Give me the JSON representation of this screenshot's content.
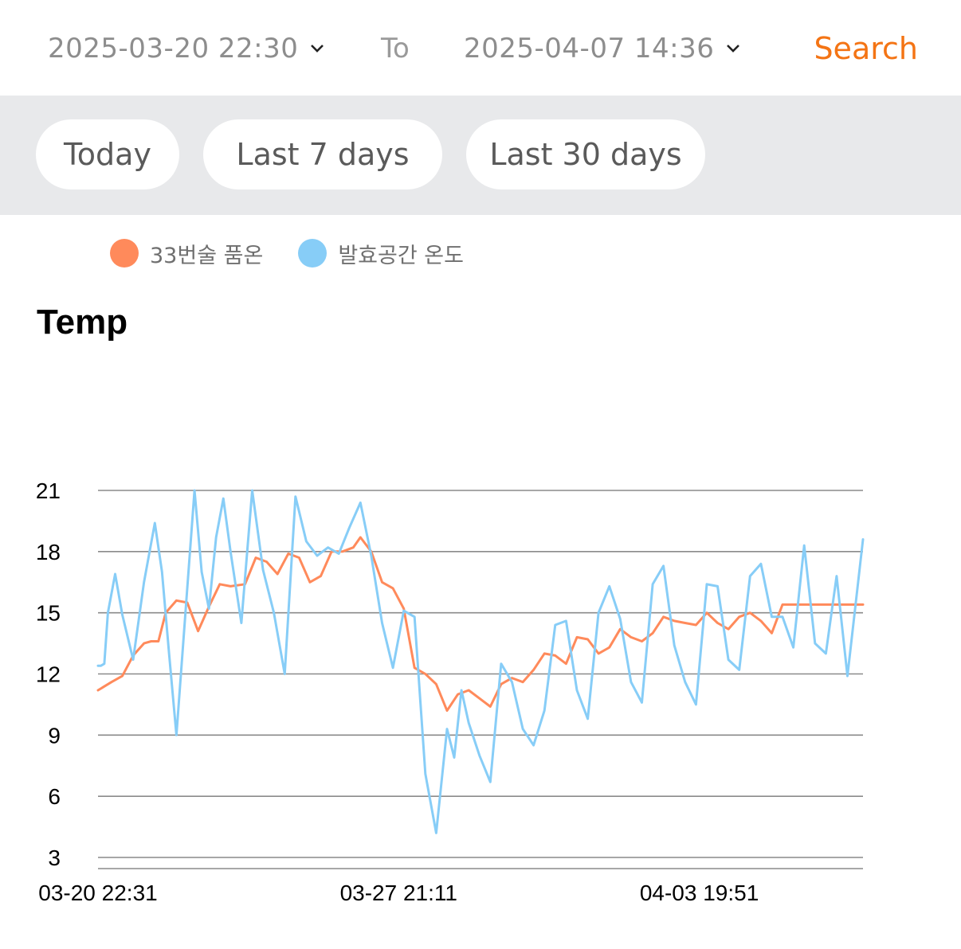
{
  "filter": {
    "from_date": "2025-03-20 22:30",
    "to_label": "To",
    "to_date": "2025-04-07 14:36",
    "search_label": "Search"
  },
  "quick_ranges": [
    "Today",
    "Last 7 days",
    "Last 30 days"
  ],
  "colors": {
    "accent": "#f47414",
    "series_a": "#ff8a5b",
    "series_b": "#87cdf7"
  },
  "icons": {
    "dropdown": "chevron-down-icon"
  },
  "chart_data": {
    "type": "line",
    "title": "Temp",
    "xlabel": "",
    "ylabel": "",
    "ylim": [
      3,
      21
    ],
    "yticks": [
      3,
      6,
      9,
      12,
      15,
      18,
      21
    ],
    "grid": true,
    "legend_position": "top-left",
    "x_range": [
      "2025-03-20 22:31",
      "2025-04-07 14:36"
    ],
    "xtick_labels": [
      "03-20 22:31",
      "03-27 21:11",
      "04-03 19:51"
    ],
    "series": [
      {
        "name": "33번술 품온",
        "color": "#ff8a5b",
        "x": [
          "2025-03-20 22:31",
          "2025-03-21 06:00",
          "2025-03-21 12:00",
          "2025-03-21 18:00",
          "2025-03-22 00:00",
          "2025-03-22 04:00",
          "2025-03-22 08:00",
          "2025-03-22 12:00",
          "2025-03-22 18:00",
          "2025-03-23 00:00",
          "2025-03-23 06:00",
          "2025-03-23 12:00",
          "2025-03-23 18:00",
          "2025-03-24 00:00",
          "2025-03-24 08:00",
          "2025-03-24 14:00",
          "2025-03-24 20:00",
          "2025-03-25 02:00",
          "2025-03-25 08:00",
          "2025-03-25 14:00",
          "2025-03-25 20:00",
          "2025-03-26 02:00",
          "2025-03-26 08:00",
          "2025-03-26 14:00",
          "2025-03-26 20:00",
          "2025-03-27 00:00",
          "2025-03-27 06:00",
          "2025-03-27 12:00",
          "2025-03-27 18:00",
          "2025-03-28 00:00",
          "2025-03-28 06:00",
          "2025-03-28 12:00",
          "2025-03-28 18:00",
          "2025-03-29 00:00",
          "2025-03-29 06:00",
          "2025-03-29 12:00",
          "2025-03-29 18:00",
          "2025-03-30 00:00",
          "2025-03-30 06:00",
          "2025-03-30 12:00",
          "2025-03-30 18:00",
          "2025-03-31 00:00",
          "2025-03-31 06:00",
          "2025-03-31 12:00",
          "2025-03-31 18:00",
          "2025-04-01 00:00",
          "2025-04-01 06:00",
          "2025-04-01 12:00",
          "2025-04-01 18:00",
          "2025-04-02 00:00",
          "2025-04-02 06:00",
          "2025-04-02 12:00",
          "2025-04-02 18:00",
          "2025-04-03 00:00",
          "2025-04-03 06:00",
          "2025-04-03 12:00",
          "2025-04-03 18:00",
          "2025-04-04 00:00",
          "2025-04-04 06:00",
          "2025-04-04 12:00",
          "2025-04-04 18:00",
          "2025-04-05 00:00",
          "2025-04-05 06:00",
          "2025-04-05 12:00",
          "2025-04-05 18:00",
          "2025-04-06 00:00",
          "2025-04-06 06:00",
          "2025-04-06 12:00",
          "2025-04-06 18:00",
          "2025-04-07 00:00",
          "2025-04-07 06:00",
          "2025-04-07 14:36"
        ],
        "values": [
          11.2,
          11.6,
          11.9,
          12.9,
          13.5,
          13.6,
          13.6,
          15.0,
          15.6,
          15.5,
          14.1,
          15.3,
          16.4,
          16.3,
          16.4,
          17.7,
          17.5,
          16.9,
          17.9,
          17.7,
          16.5,
          16.8,
          18.0,
          18.0,
          18.2,
          18.7,
          18.0,
          16.5,
          16.2,
          15.2,
          12.3,
          12.0,
          11.5,
          10.2,
          11.0,
          11.2,
          10.8,
          10.4,
          11.5,
          11.8,
          11.6,
          12.2,
          13.0,
          12.9,
          12.5,
          13.8,
          13.7,
          13.0,
          13.3,
          14.2,
          13.8,
          13.6,
          14.0,
          14.8,
          14.6,
          14.5,
          14.4,
          15.0,
          14.5,
          14.2,
          14.8,
          15.0,
          14.6,
          14.0,
          15.4,
          15.4,
          15.4,
          15.4,
          15.4,
          15.4,
          15.4,
          15.4
        ]
      },
      {
        "name": "발효공간 온도",
        "color": "#87cdf7",
        "x": [
          "2025-03-20 22:31",
          "2025-03-21 00:00",
          "2025-03-21 02:00",
          "2025-03-21 04:00",
          "2025-03-21 08:00",
          "2025-03-21 12:00",
          "2025-03-21 18:00",
          "2025-03-22 00:00",
          "2025-03-22 06:00",
          "2025-03-22 10:00",
          "2025-03-22 14:00",
          "2025-03-22 18:00",
          "2025-03-23 00:00",
          "2025-03-23 04:00",
          "2025-03-23 08:00",
          "2025-03-23 12:00",
          "2025-03-23 16:00",
          "2025-03-23 20:00",
          "2025-03-24 00:00",
          "2025-03-24 06:00",
          "2025-03-24 12:00",
          "2025-03-24 18:00",
          "2025-03-25 00:00",
          "2025-03-25 06:00",
          "2025-03-25 12:00",
          "2025-03-25 18:00",
          "2025-03-26 00:00",
          "2025-03-26 06:00",
          "2025-03-26 12:00",
          "2025-03-26 18:00",
          "2025-03-27 00:00",
          "2025-03-27 06:00",
          "2025-03-27 12:00",
          "2025-03-27 18:00",
          "2025-03-28 00:00",
          "2025-03-28 06:00",
          "2025-03-28 12:00",
          "2025-03-28 18:00",
          "2025-03-29 00:00",
          "2025-03-29 04:00",
          "2025-03-29 08:00",
          "2025-03-29 12:00",
          "2025-03-29 18:00",
          "2025-03-30 00:00",
          "2025-03-30 06:00",
          "2025-03-30 12:00",
          "2025-03-30 18:00",
          "2025-03-31 00:00",
          "2025-03-31 06:00",
          "2025-03-31 12:00",
          "2025-03-31 18:00",
          "2025-04-01 00:00",
          "2025-04-01 06:00",
          "2025-04-01 12:00",
          "2025-04-01 18:00",
          "2025-04-02 00:00",
          "2025-04-02 06:00",
          "2025-04-02 12:00",
          "2025-04-02 18:00",
          "2025-04-03 00:00",
          "2025-04-03 06:00",
          "2025-04-03 12:00",
          "2025-04-03 18:00",
          "2025-04-04 00:00",
          "2025-04-04 06:00",
          "2025-04-04 12:00",
          "2025-04-04 18:00",
          "2025-04-05 00:00",
          "2025-04-05 06:00",
          "2025-04-05 12:00",
          "2025-04-05 18:00",
          "2025-04-06 00:00",
          "2025-04-06 06:00",
          "2025-04-06 12:00",
          "2025-04-06 18:00",
          "2025-04-07 00:00",
          "2025-04-07 06:00",
          "2025-04-07 14:36"
        ],
        "values": [
          12.4,
          12.4,
          12.5,
          15.0,
          16.9,
          14.9,
          12.7,
          16.5,
          19.4,
          17.0,
          12.9,
          9.0,
          16.2,
          21.0,
          17.0,
          15.2,
          18.7,
          20.6,
          18.0,
          14.5,
          21.0,
          17.1,
          15.0,
          12.0,
          20.7,
          18.5,
          17.8,
          18.2,
          17.9,
          19.2,
          20.4,
          17.8,
          14.5,
          12.3,
          15.1,
          14.8,
          7.1,
          4.2,
          9.3,
          7.9,
          11.2,
          9.6,
          8.0,
          6.7,
          12.5,
          11.6,
          9.3,
          8.5,
          10.2,
          14.4,
          14.6,
          11.2,
          9.8,
          15.0,
          16.3,
          14.7,
          11.6,
          10.6,
          16.4,
          17.3,
          13.4,
          11.6,
          10.5,
          16.4,
          16.3,
          12.7,
          12.2,
          16.8,
          17.4,
          14.8,
          14.8,
          13.3,
          18.3,
          13.5,
          13.0,
          16.8,
          11.9,
          18.6
        ]
      }
    ]
  }
}
